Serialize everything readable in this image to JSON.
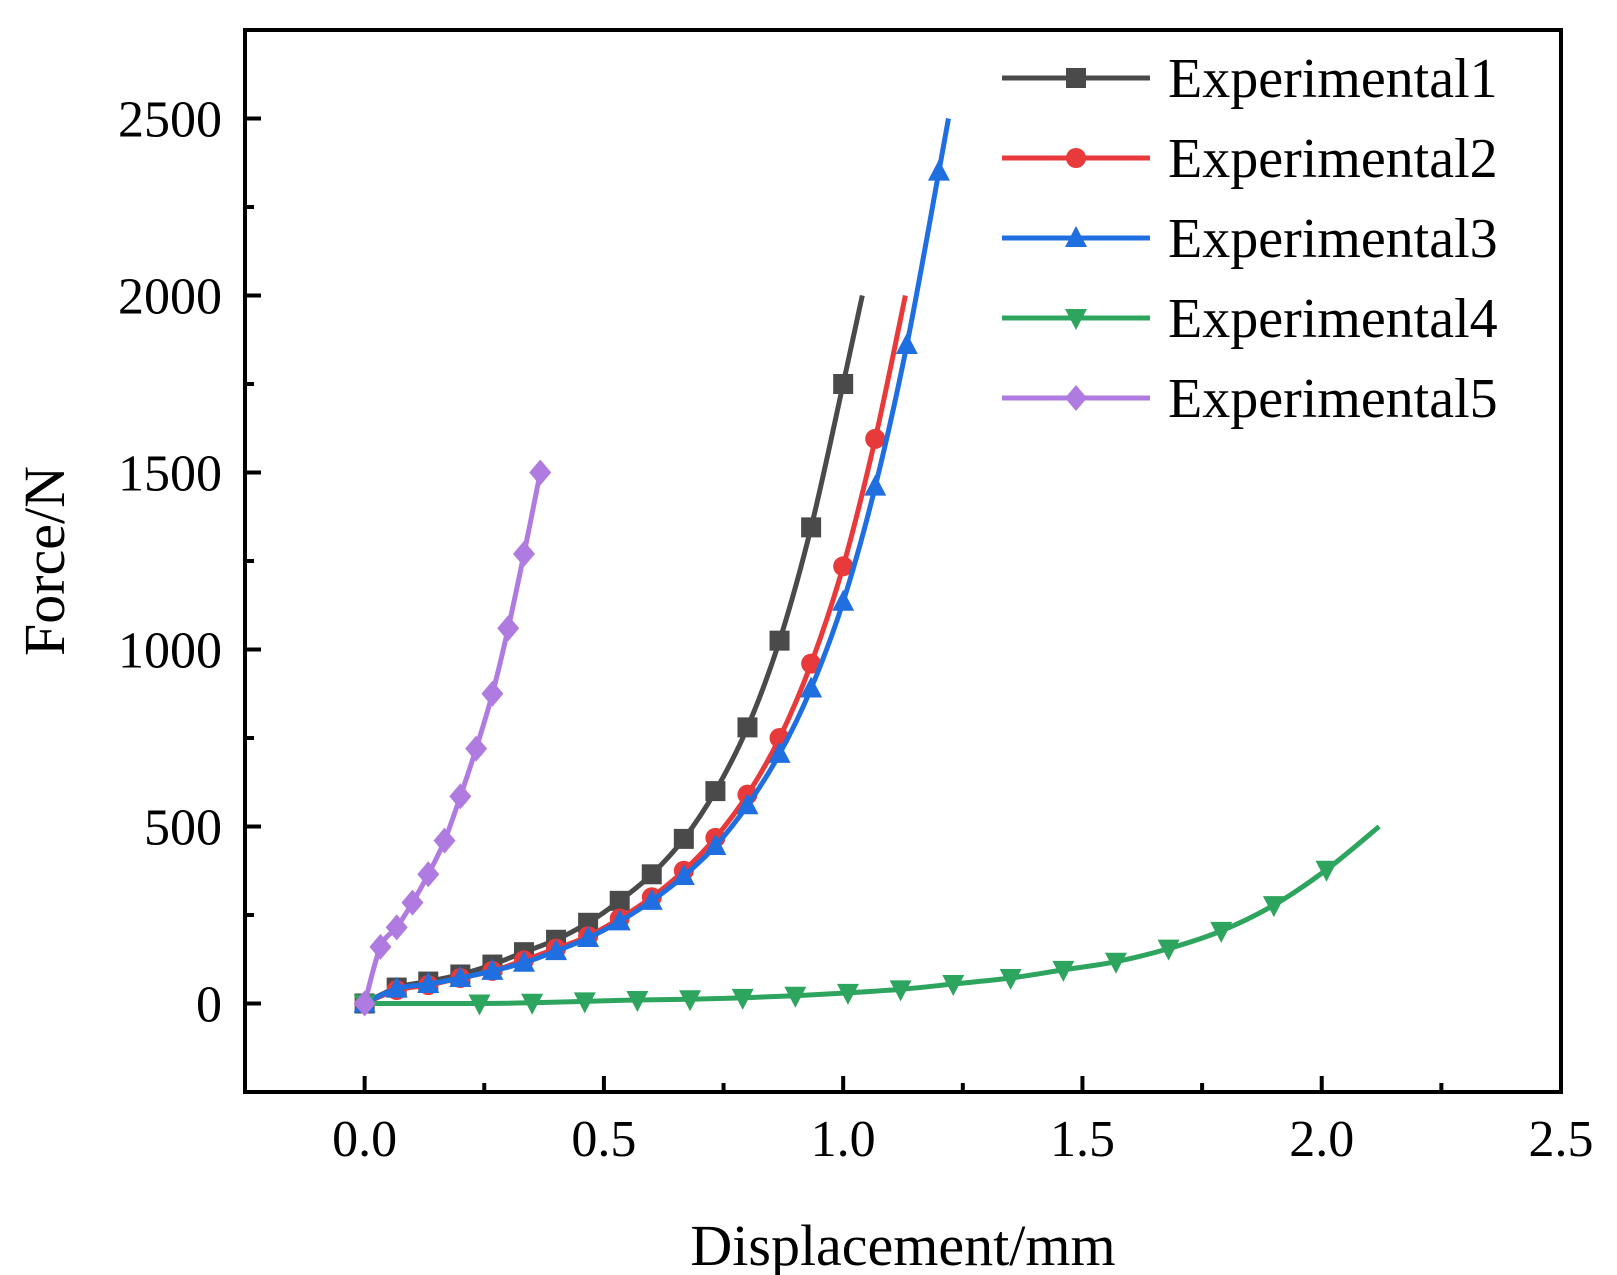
{
  "chart_data": {
    "type": "line",
    "title": "",
    "xlabel": "Displacement/mm",
    "ylabel": "Force/N",
    "xlim": [
      -0.25,
      2.5
    ],
    "ylim": [
      -250,
      2750
    ],
    "xticks": [
      0.0,
      0.5,
      1.0,
      1.5,
      2.0,
      2.5
    ],
    "xtick_labels": [
      "0.0",
      "0.5",
      "1.0",
      "1.5",
      "2.0",
      "2.5"
    ],
    "yticks": [
      0,
      500,
      1000,
      1500,
      2000,
      2500
    ],
    "ytick_labels": [
      "0",
      "500",
      "1000",
      "1500",
      "2000",
      "2500"
    ],
    "grid": false,
    "legend_position": "top-right",
    "series": [
      {
        "name": "Experimental1",
        "color": "#4a4a4a",
        "marker": "square",
        "x": [
          0,
          0.067,
          0.133,
          0.2,
          0.267,
          0.333,
          0.4,
          0.467,
          0.533,
          0.6,
          0.667,
          0.733,
          0.8,
          0.867,
          0.933,
          1.0,
          1.04
        ],
        "y": [
          0,
          45,
          62,
          82,
          110,
          145,
          180,
          228,
          290,
          365,
          465,
          600,
          780,
          1025,
          1345,
          1750,
          2000
        ]
      },
      {
        "name": "Experimental2",
        "color": "#e8393b",
        "marker": "circle",
        "x": [
          0,
          0.067,
          0.133,
          0.2,
          0.267,
          0.333,
          0.4,
          0.467,
          0.533,
          0.6,
          0.667,
          0.733,
          0.8,
          0.867,
          0.933,
          1.0,
          1.067,
          1.13
        ],
        "y": [
          0,
          38,
          52,
          72,
          92,
          122,
          155,
          190,
          240,
          300,
          375,
          468,
          590,
          750,
          960,
          1235,
          1595,
          2000
        ]
      },
      {
        "name": "Experimental3",
        "color": "#1f6fe0",
        "marker": "triangle-up",
        "x": [
          0,
          0.067,
          0.133,
          0.2,
          0.267,
          0.333,
          0.4,
          0.467,
          0.533,
          0.6,
          0.667,
          0.733,
          0.8,
          0.867,
          0.933,
          1.0,
          1.067,
          1.133,
          1.2,
          1.22
        ],
        "y": [
          0,
          42,
          55,
          72,
          92,
          115,
          148,
          185,
          232,
          290,
          360,
          445,
          560,
          705,
          890,
          1135,
          1460,
          1860,
          2350,
          2500
        ]
      },
      {
        "name": "Experimental4",
        "color": "#2ea55e",
        "marker": "triangle-down",
        "x": [
          0,
          0.24,
          0.35,
          0.46,
          0.57,
          0.68,
          0.79,
          0.9,
          1.01,
          1.12,
          1.23,
          1.35,
          1.46,
          1.57,
          1.68,
          1.79,
          1.9,
          2.01,
          2.12
        ],
        "y": [
          0,
          0,
          2,
          6,
          10,
          12,
          16,
          22,
          30,
          40,
          55,
          72,
          95,
          118,
          155,
          205,
          278,
          378,
          500
        ]
      },
      {
        "name": "Experimental5",
        "color": "#b07be0",
        "marker": "diamond",
        "x": [
          0,
          0.033,
          0.067,
          0.1,
          0.133,
          0.167,
          0.2,
          0.233,
          0.267,
          0.3,
          0.333,
          0.367
        ],
        "y": [
          0,
          160,
          215,
          285,
          365,
          460,
          585,
          720,
          875,
          1060,
          1270,
          1500
        ]
      }
    ]
  }
}
